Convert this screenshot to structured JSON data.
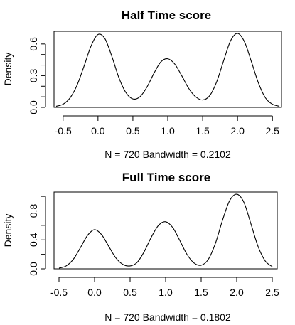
{
  "chart_data": [
    {
      "type": "line",
      "title": "Half Time score",
      "xlabel": "N = 720   Bandwidth = 0.2102",
      "ylabel": "Density",
      "xlim": [
        -0.63,
        2.63
      ],
      "ylim": [
        0,
        0.72
      ],
      "xticks": [
        -0.5,
        0.0,
        0.5,
        1.0,
        1.5,
        2.0,
        2.5
      ],
      "xtick_labels": [
        "-0.5",
        "0.0",
        "0.5",
        "1.0",
        "1.5",
        "2.0",
        "2.5"
      ],
      "yticks": [
        0.0,
        0.3,
        0.6
      ],
      "ytick_labels": [
        "0.0",
        "0.3",
        "0.6"
      ],
      "yminor_ticks": [
        0.1,
        0.2,
        0.4,
        0.5
      ],
      "series": [
        {
          "x": [
            -0.6,
            -0.5,
            -0.4,
            -0.3,
            -0.2,
            -0.1,
            0.0,
            0.1,
            0.2,
            0.3,
            0.4,
            0.5,
            0.6,
            0.7,
            0.8,
            0.9,
            1.0,
            1.1,
            1.2,
            1.3,
            1.4,
            1.5,
            1.6,
            1.7,
            1.8,
            1.9,
            2.0,
            2.1,
            2.2,
            2.3,
            2.4,
            2.5,
            2.6
          ],
          "y": [
            0.01,
            0.03,
            0.09,
            0.21,
            0.39,
            0.58,
            0.69,
            0.65,
            0.48,
            0.28,
            0.14,
            0.08,
            0.1,
            0.19,
            0.32,
            0.43,
            0.46,
            0.41,
            0.3,
            0.18,
            0.1,
            0.07,
            0.11,
            0.24,
            0.44,
            0.63,
            0.7,
            0.62,
            0.43,
            0.23,
            0.09,
            0.03,
            0.01
          ]
        }
      ]
    },
    {
      "type": "line",
      "title": "Full Time score",
      "xlabel": "N = 720   Bandwidth = 0.1802",
      "ylabel": "Density",
      "xlim": [
        -0.57,
        2.57
      ],
      "ylim": [
        0,
        1.06
      ],
      "xticks": [
        -0.5,
        0.0,
        0.5,
        1.0,
        1.5,
        2.0,
        2.5
      ],
      "xtick_labels": [
        "-0.5",
        "0.0",
        "0.5",
        "1.0",
        "1.5",
        "2.0",
        "2.5"
      ],
      "yticks": [
        0.0,
        0.4,
        0.8
      ],
      "ytick_labels": [
        "0.0",
        "0.4",
        "0.8"
      ],
      "yminor_ticks": [
        0.2,
        0.6,
        1.0
      ],
      "series": [
        {
          "x": [
            -0.5,
            -0.4,
            -0.3,
            -0.2,
            -0.1,
            0.0,
            0.1,
            0.2,
            0.3,
            0.4,
            0.5,
            0.6,
            0.7,
            0.8,
            0.9,
            1.0,
            1.1,
            1.2,
            1.3,
            1.4,
            1.5,
            1.6,
            1.7,
            1.8,
            1.9,
            2.0,
            2.1,
            2.2,
            2.3,
            2.4,
            2.5
          ],
          "y": [
            0.01,
            0.04,
            0.13,
            0.29,
            0.46,
            0.54,
            0.47,
            0.31,
            0.15,
            0.06,
            0.04,
            0.09,
            0.24,
            0.44,
            0.6,
            0.65,
            0.57,
            0.39,
            0.2,
            0.08,
            0.05,
            0.13,
            0.35,
            0.67,
            0.94,
            1.03,
            0.92,
            0.62,
            0.31,
            0.11,
            0.03
          ]
        }
      ]
    }
  ]
}
